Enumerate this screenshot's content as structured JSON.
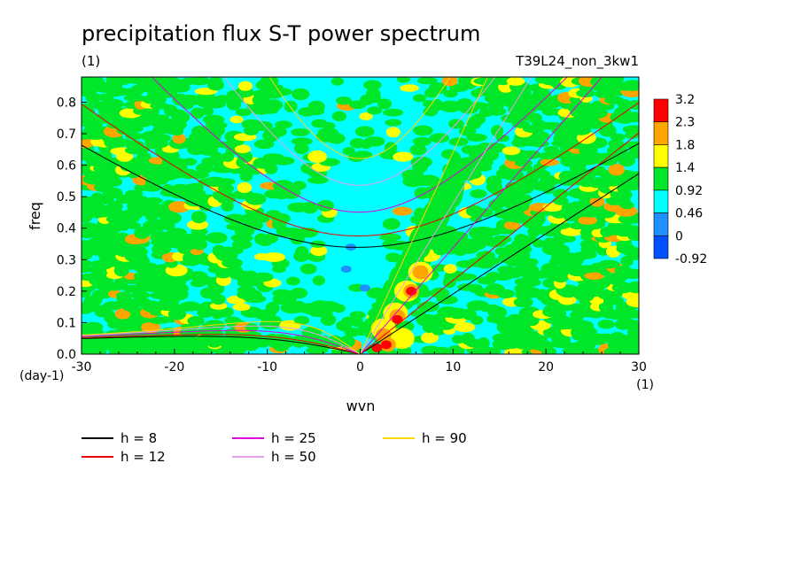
{
  "chart_data": {
    "type": "heatmap",
    "title": "precipitation flux S-T power spectrum",
    "subtitle_left": "(1)",
    "subtitle_right": "T39L24_non_3kw1",
    "xlabel": "wvn",
    "ylabel": "freq",
    "x_unit": "(1)",
    "y_unit": "(day-1)",
    "xlim": [
      -30,
      30
    ],
    "ylim": [
      0,
      0.88
    ],
    "xticks": [
      -30,
      -20,
      -10,
      0,
      10,
      20,
      30
    ],
    "xtick_labels": [
      "-30",
      "-20",
      "-10",
      "0",
      "10",
      "20",
      "30"
    ],
    "yticks": [
      0.0,
      0.1,
      0.2,
      0.3,
      0.4,
      0.5,
      0.6,
      0.7,
      0.8
    ],
    "ytick_labels": [
      "0.0",
      "0.1",
      "0.2",
      "0.3",
      "0.4",
      "0.5",
      "0.6",
      "0.7",
      "0.8"
    ],
    "colorbar": {
      "labels": [
        "3.2",
        "2.3",
        "1.8",
        "1.4",
        "0.92",
        "0.46",
        "0",
        "-0.92"
      ],
      "colors": [
        "#ff0000",
        "#ffa500",
        "#ffff00",
        "#00e628",
        "#00ffff",
        "#1e90ff",
        "#0050ff"
      ]
    },
    "field_colors": {
      "background": "#00ffff",
      "level1": "#00e628",
      "level2": "#ffff00",
      "level3": "#ffa500",
      "level4": "#ff0000",
      "low": "#1e90ff"
    },
    "dispersion_curves": {
      "legend": [
        {
          "label": "h =  8",
          "h": 8,
          "color": "#000000"
        },
        {
          "label": "h = 12",
          "h": 12,
          "color": "#ee0000"
        },
        {
          "label": "h = 25",
          "h": 25,
          "color": "#dd00dd"
        },
        {
          "label": "h = 50",
          "h": 50,
          "color": "#e8a0e8"
        },
        {
          "label": "h = 90",
          "h": 90,
          "color": "#ffd700"
        }
      ],
      "families": [
        "kelvin",
        "mixed-rossby-gravity",
        "inertio-gravity",
        "rossby"
      ]
    }
  }
}
